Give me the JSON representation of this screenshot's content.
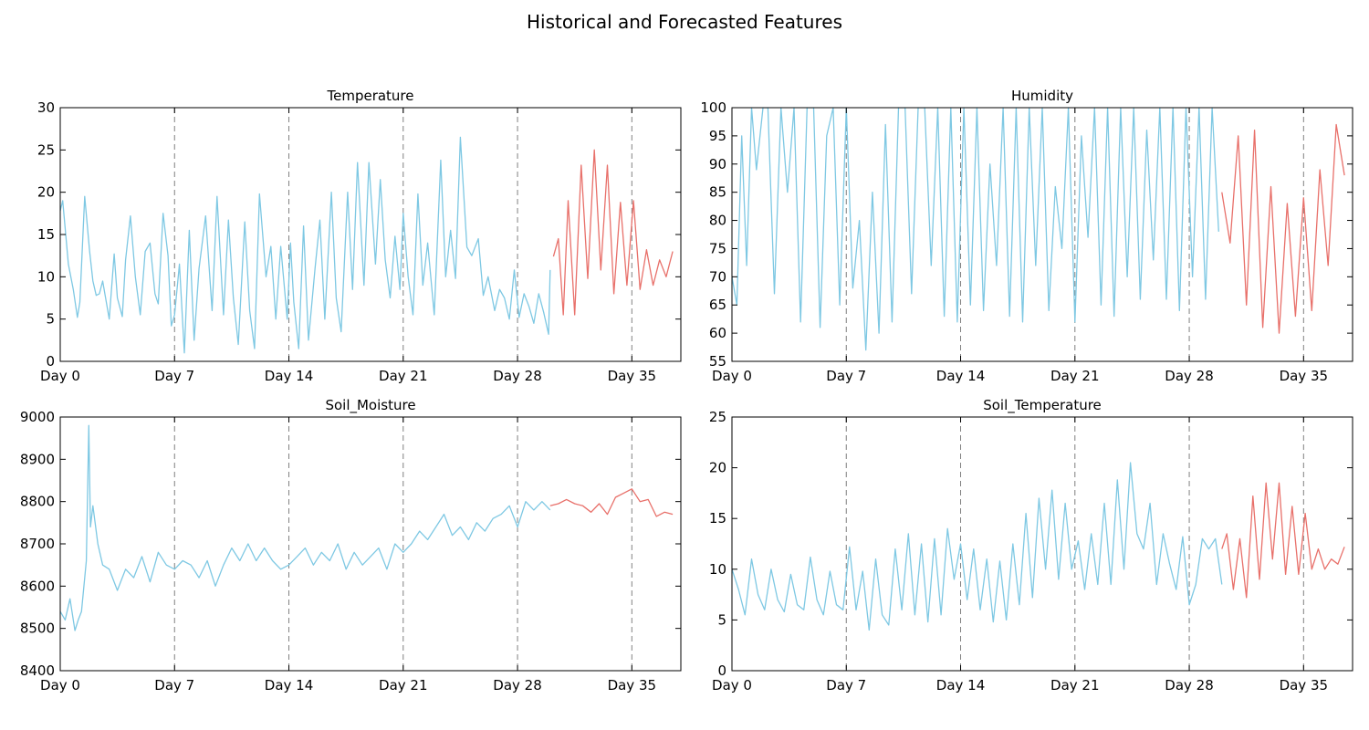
{
  "figure": {
    "title": "Historical and Forecasted Features",
    "colors": {
      "historical": "#7ec8e3",
      "forecast": "#e8706a",
      "marker_line": "#808080"
    }
  },
  "chart_data": [
    {
      "type": "line",
      "title": "Temperature",
      "xlabel": "",
      "ylabel": "",
      "xlim": [
        0,
        38
      ],
      "ylim": [
        0,
        30
      ],
      "yticks": [
        0,
        5,
        10,
        15,
        20,
        25,
        30
      ],
      "xticks": [
        0,
        7,
        14,
        21,
        28,
        35
      ],
      "xtick_labels": [
        "Day 0",
        "Day 7",
        "Day 14",
        "Day 21",
        "Day 28",
        "Day 35"
      ],
      "vlines": [
        7,
        14,
        21,
        28,
        35
      ],
      "grid": false,
      "series": [
        {
          "role": "historical",
          "x": [
            0,
            0.15,
            0.5,
            0.8,
            1.05,
            1.2,
            1.5,
            1.8,
            2.0,
            2.2,
            2.4,
            2.6,
            3.0,
            3.3,
            3.5,
            3.8,
            4.0,
            4.3,
            4.6,
            4.9,
            5.2,
            5.5,
            5.8,
            6.0,
            6.3,
            6.6,
            6.8,
            7.0,
            7.3,
            7.6,
            7.9,
            8.2,
            8.5,
            8.9,
            9.3,
            9.6,
            10.0,
            10.3,
            10.6,
            10.9,
            11.3,
            11.6,
            11.9,
            12.2,
            12.6,
            12.9,
            13.2,
            13.5,
            13.9,
            14.1,
            14.3,
            14.6,
            14.9,
            15.2,
            15.6,
            15.9,
            16.2,
            16.6,
            16.9,
            17.2,
            17.6,
            17.9,
            18.2,
            18.6,
            18.9,
            19.3,
            19.6,
            19.9,
            20.2,
            20.5,
            20.8,
            21.0,
            21.3,
            21.6,
            21.9,
            22.2,
            22.5,
            22.9,
            23.3,
            23.6,
            23.9,
            24.2,
            24.5,
            24.9,
            25.2,
            25.6,
            25.9,
            26.2,
            26.6,
            26.9,
            27.2,
            27.5,
            27.8,
            28.1,
            28.4,
            28.7,
            29.0,
            29.3,
            29.6,
            29.9,
            30.0
          ],
          "values": [
            17.8,
            19.0,
            11.5,
            8.5,
            5.2,
            7.0,
            19.5,
            13.0,
            9.5,
            7.8,
            8.0,
            9.5,
            5.0,
            12.7,
            7.5,
            5.3,
            12.0,
            17.2,
            10.0,
            5.5,
            13.0,
            14.0,
            8.0,
            6.8,
            17.5,
            12.5,
            4.2,
            5.5,
            11.5,
            1.0,
            15.5,
            2.5,
            11.0,
            17.2,
            6.0,
            19.5,
            5.5,
            16.7,
            7.5,
            2.0,
            16.5,
            6.0,
            1.5,
            19.8,
            10.0,
            13.6,
            5.0,
            13.6,
            5.0,
            14.0,
            7.0,
            1.5,
            16.0,
            2.5,
            11.0,
            16.7,
            5.0,
            20.0,
            7.5,
            3.5,
            20.0,
            8.5,
            23.5,
            9.0,
            23.5,
            11.5,
            21.5,
            12.0,
            7.5,
            14.8,
            8.5,
            17.5,
            10.0,
            5.5,
            19.8,
            9.0,
            14.0,
            5.5,
            23.8,
            10.0,
            15.5,
            9.8,
            26.5,
            13.5,
            12.5,
            14.5,
            7.8,
            10.0,
            6.0,
            8.5,
            7.5,
            5.0,
            10.8,
            5.2,
            8.0,
            6.5,
            4.5,
            8.0,
            5.8,
            3.2,
            10.8
          ]
        },
        {
          "role": "forecast",
          "x": [
            30.2,
            30.5,
            30.8,
            31.1,
            31.5,
            31.9,
            32.3,
            32.7,
            33.1,
            33.5,
            33.9,
            34.3,
            34.7,
            35.1,
            35.5,
            35.9,
            36.3,
            36.7,
            37.1,
            37.5
          ],
          "values": [
            12.4,
            14.5,
            5.5,
            19.0,
            5.5,
            23.2,
            9.8,
            25.0,
            10.8,
            23.2,
            8.0,
            18.8,
            9.0,
            19.0,
            8.5,
            13.2,
            9.0,
            12.0,
            10.0,
            13.0
          ]
        }
      ]
    },
    {
      "type": "line",
      "title": "Humidity",
      "xlabel": "",
      "ylabel": "",
      "xlim": [
        0,
        38
      ],
      "ylim": [
        55,
        100
      ],
      "yticks": [
        55,
        60,
        65,
        70,
        75,
        80,
        85,
        90,
        95,
        100
      ],
      "xticks": [
        0,
        7,
        14,
        21,
        28,
        35
      ],
      "xtick_labels": [
        "Day 0",
        "Day 7",
        "Day 14",
        "Day 21",
        "Day 28",
        "Day 35"
      ],
      "vlines": [
        7,
        14,
        21,
        28,
        35
      ],
      "grid": false,
      "series": [
        {
          "role": "historical",
          "x": [
            0,
            0.3,
            0.6,
            0.9,
            1.2,
            1.5,
            1.9,
            2.2,
            2.6,
            3.0,
            3.4,
            3.8,
            4.2,
            4.6,
            5.0,
            5.4,
            5.8,
            6.2,
            6.6,
            7.0,
            7.4,
            7.8,
            8.2,
            8.6,
            9.0,
            9.4,
            9.8,
            10.2,
            10.6,
            11.0,
            11.4,
            11.8,
            12.2,
            12.6,
            13.0,
            13.4,
            13.8,
            14.2,
            14.6,
            15.0,
            15.4,
            15.8,
            16.2,
            16.6,
            17.0,
            17.4,
            17.8,
            18.2,
            18.6,
            19.0,
            19.4,
            19.8,
            20.2,
            20.6,
            21.0,
            21.4,
            21.8,
            22.2,
            22.6,
            23.0,
            23.4,
            23.8,
            24.2,
            24.6,
            25.0,
            25.4,
            25.8,
            26.2,
            26.6,
            27.0,
            27.4,
            27.8,
            28.2,
            28.6,
            29.0,
            29.4,
            29.8
          ],
          "values": [
            70,
            65,
            95,
            72,
            100,
            89,
            100,
            100,
            67,
            100,
            85,
            100,
            62,
            100,
            100,
            61,
            95,
            100,
            65,
            100,
            68,
            80,
            57,
            85,
            60,
            97,
            62,
            100,
            100,
            67,
            100,
            100,
            72,
            100,
            63,
            100,
            62,
            100,
            65,
            100,
            64,
            90,
            72,
            100,
            63,
            100,
            62,
            100,
            72,
            100,
            64,
            86,
            75,
            100,
            62,
            95,
            77,
            100,
            65,
            100,
            63,
            100,
            70,
            100,
            66,
            96,
            73,
            100,
            66,
            100,
            64,
            100,
            70,
            100,
            66,
            100,
            78
          ]
        },
        {
          "role": "forecast",
          "x": [
            30.0,
            30.5,
            31.0,
            31.5,
            32.0,
            32.5,
            33.0,
            33.5,
            34.0,
            34.5,
            35.0,
            35.5,
            36.0,
            36.5,
            37.0,
            37.5
          ],
          "values": [
            85,
            76,
            95,
            65,
            96,
            61,
            86,
            60,
            83,
            63,
            84,
            64,
            89,
            72,
            97,
            88
          ]
        }
      ]
    },
    {
      "type": "line",
      "title": "Soil_Moisture",
      "xlabel": "",
      "ylabel": "",
      "xlim": [
        0,
        38
      ],
      "ylim": [
        8400,
        9000
      ],
      "yticks": [
        8400,
        8500,
        8600,
        8700,
        8800,
        8900,
        9000
      ],
      "xticks": [
        0,
        7,
        14,
        21,
        28,
        35
      ],
      "xtick_labels": [
        "Day 0",
        "Day 7",
        "Day 14",
        "Day 21",
        "Day 28",
        "Day 35"
      ],
      "vlines": [
        7,
        14,
        21,
        28,
        35
      ],
      "grid": false,
      "series": [
        {
          "role": "historical",
          "x": [
            0,
            0.3,
            0.6,
            0.9,
            1.1,
            1.3,
            1.6,
            1.75,
            1.85,
            2.0,
            2.3,
            2.6,
            3.0,
            3.5,
            4.0,
            4.5,
            5.0,
            5.5,
            6.0,
            6.5,
            7.0,
            7.5,
            8.0,
            8.5,
            9.0,
            9.5,
            10.0,
            10.5,
            11.0,
            11.5,
            12.0,
            12.5,
            13.0,
            13.5,
            14.0,
            14.5,
            15.0,
            15.5,
            16.0,
            16.5,
            17.0,
            17.5,
            18.0,
            18.5,
            19.0,
            19.5,
            20.0,
            20.5,
            21.0,
            21.5,
            22.0,
            22.5,
            23.0,
            23.5,
            24.0,
            24.5,
            25.0,
            25.5,
            26.0,
            26.5,
            27.0,
            27.5,
            28.0,
            28.5,
            29.0,
            29.5,
            30.0
          ],
          "values": [
            8540,
            8520,
            8570,
            8495,
            8520,
            8540,
            8660,
            8980,
            8740,
            8790,
            8700,
            8650,
            8640,
            8590,
            8640,
            8620,
            8670,
            8610,
            8680,
            8650,
            8640,
            8660,
            8650,
            8620,
            8660,
            8600,
            8650,
            8690,
            8660,
            8700,
            8660,
            8690,
            8660,
            8640,
            8650,
            8670,
            8690,
            8650,
            8680,
            8660,
            8700,
            8640,
            8680,
            8650,
            8670,
            8690,
            8640,
            8700,
            8680,
            8700,
            8730,
            8710,
            8740,
            8770,
            8720,
            8740,
            8710,
            8750,
            8730,
            8760,
            8770,
            8790,
            8740,
            8800,
            8780,
            8800,
            8780
          ]
        },
        {
          "role": "forecast",
          "x": [
            30.0,
            30.5,
            31.0,
            31.5,
            32.0,
            32.5,
            33.0,
            33.5,
            34.0,
            34.5,
            35.0,
            35.5,
            36.0,
            36.5,
            37.0,
            37.5
          ],
          "values": [
            8790,
            8795,
            8805,
            8795,
            8790,
            8775,
            8795,
            8770,
            8810,
            8820,
            8830,
            8800,
            8805,
            8765,
            8775,
            8770
          ]
        }
      ]
    },
    {
      "type": "line",
      "title": "Soil_Temperature",
      "xlabel": "",
      "ylabel": "",
      "xlim": [
        0,
        38
      ],
      "ylim": [
        0,
        25
      ],
      "yticks": [
        0,
        5,
        10,
        15,
        20,
        25
      ],
      "xticks": [
        0,
        7,
        14,
        21,
        28,
        35
      ],
      "xtick_labels": [
        "Day 0",
        "Day 7",
        "Day 14",
        "Day 21",
        "Day 28",
        "Day 35"
      ],
      "vlines": [
        7,
        14,
        21,
        28,
        35
      ],
      "grid": false,
      "series": [
        {
          "role": "historical",
          "x": [
            0,
            0.4,
            0.8,
            1.2,
            1.6,
            2.0,
            2.4,
            2.8,
            3.2,
            3.6,
            4.0,
            4.4,
            4.8,
            5.2,
            5.6,
            6.0,
            6.4,
            6.8,
            7.2,
            7.6,
            8.0,
            8.4,
            8.8,
            9.2,
            9.6,
            10.0,
            10.4,
            10.8,
            11.2,
            11.6,
            12.0,
            12.4,
            12.8,
            13.2,
            13.6,
            14.0,
            14.4,
            14.8,
            15.2,
            15.6,
            16.0,
            16.4,
            16.8,
            17.2,
            17.6,
            18.0,
            18.4,
            18.8,
            19.2,
            19.6,
            20.0,
            20.4,
            20.8,
            21.2,
            21.6,
            22.0,
            22.4,
            22.8,
            23.2,
            23.6,
            24.0,
            24.4,
            24.8,
            25.2,
            25.6,
            26.0,
            26.4,
            26.8,
            27.2,
            27.6,
            28.0,
            28.4,
            28.8,
            29.2,
            29.6,
            30.0
          ],
          "values": [
            10.0,
            8.0,
            5.5,
            11.0,
            7.5,
            6.0,
            10.0,
            7.0,
            5.8,
            9.5,
            6.5,
            6.0,
            11.2,
            7.0,
            5.5,
            9.8,
            6.5,
            6.0,
            12.2,
            6.0,
            9.8,
            4.0,
            11.0,
            5.5,
            4.5,
            12.0,
            6.0,
            13.5,
            5.5,
            12.5,
            4.8,
            13.0,
            5.5,
            14.0,
            9.0,
            12.5,
            7.0,
            12.0,
            6.0,
            11.0,
            4.8,
            10.8,
            5.0,
            12.5,
            6.5,
            15.5,
            7.2,
            17.0,
            10.0,
            17.8,
            9.0,
            16.5,
            10.0,
            12.8,
            8.0,
            13.5,
            8.5,
            16.5,
            8.5,
            18.8,
            10.0,
            20.5,
            13.5,
            12.0,
            16.5,
            8.5,
            13.5,
            10.5,
            8.0,
            13.2,
            6.5,
            8.5,
            13.0,
            12.0,
            13.0,
            8.5
          ]
        },
        {
          "role": "forecast",
          "x": [
            30.0,
            30.3,
            30.7,
            31.1,
            31.5,
            31.9,
            32.3,
            32.7,
            33.1,
            33.5,
            33.9,
            34.3,
            34.7,
            35.1,
            35.5,
            35.9,
            36.3,
            36.7,
            37.1,
            37.5
          ],
          "values": [
            12.0,
            13.5,
            8.0,
            13.0,
            7.2,
            17.2,
            9.0,
            18.5,
            11.0,
            18.5,
            9.5,
            16.2,
            9.5,
            15.5,
            10.0,
            12.0,
            10.0,
            11.0,
            10.5,
            12.2
          ]
        }
      ]
    }
  ]
}
